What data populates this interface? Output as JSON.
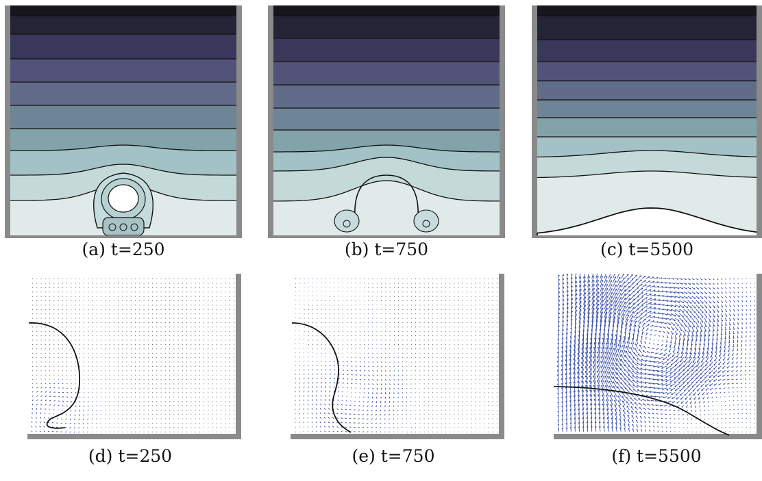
{
  "figure": {
    "panels": [
      {
        "id": "a",
        "label": "(a)",
        "time": "t=250",
        "plot": "contour"
      },
      {
        "id": "b",
        "label": "(b)",
        "time": "t=750",
        "plot": "contour"
      },
      {
        "id": "c",
        "label": "(c)",
        "time": "t=5500",
        "plot": "contour"
      },
      {
        "id": "d",
        "label": "(d)",
        "time": "t=250",
        "plot": "velocity-field"
      },
      {
        "id": "e",
        "label": "(e)",
        "time": "t=750",
        "plot": "velocity-field"
      },
      {
        "id": "f",
        "label": "(f)",
        "time": "t=5500",
        "plot": "velocity-field"
      }
    ],
    "colors": {
      "frame": "#8a8a8a",
      "vector": "#3d52a8",
      "contour_line": "#111111",
      "band_dark": "#16161c",
      "band_light": "#dde9e7"
    }
  }
}
